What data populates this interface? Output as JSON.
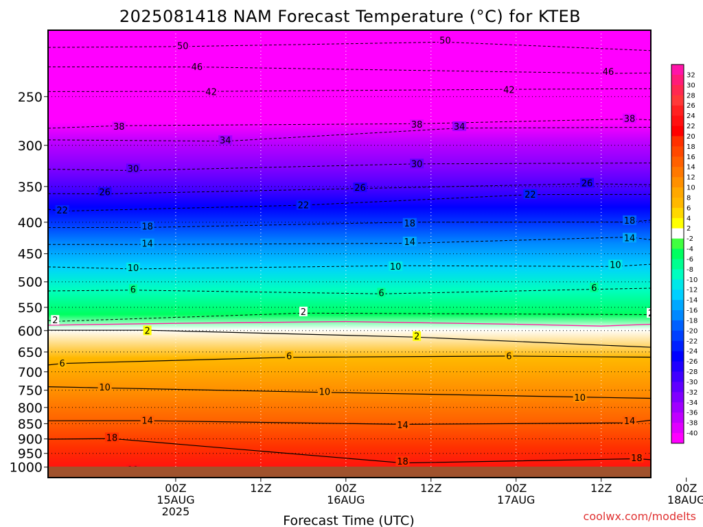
{
  "page": {
    "title": "2025081418 NAM Forecast Temperature (°C) for KTEB",
    "credit": "coolwx.com/modelts"
  },
  "chart_data": {
    "type": "heatmap",
    "title": "2025081418 NAM Forecast Temperature (°C) for KTEB",
    "xlabel": "Forecast Time (UTC)",
    "ylabel": "",
    "y_scale": "log",
    "y_axis": "pressure (hPa), increasing downward",
    "ylim": [
      195,
      1040
    ],
    "yticks": [
      250,
      300,
      350,
      400,
      450,
      500,
      550,
      600,
      650,
      700,
      750,
      800,
      850,
      900,
      950,
      1000
    ],
    "xlim_hours": [
      -12,
      73
    ],
    "xticks": [
      {
        "hour": 6,
        "lines": [
          "00Z",
          "15AUG",
          "2025"
        ]
      },
      {
        "hour": 18,
        "lines": [
          "12Z"
        ]
      },
      {
        "hour": 30,
        "lines": [
          "00Z",
          "16AUG"
        ]
      },
      {
        "hour": 42,
        "lines": [
          "12Z"
        ]
      },
      {
        "hour": 54,
        "lines": [
          "00Z",
          "17AUG"
        ]
      },
      {
        "hour": 66,
        "lines": [
          "12Z"
        ]
      },
      {
        "hour": 78,
        "lines": [
          "00Z",
          "18AUG"
        ]
      }
    ],
    "vertical_gridlines_hours": [
      6,
      18,
      30,
      42,
      54,
      66,
      78
    ],
    "colorbar": {
      "labels": [
        32,
        30,
        28,
        26,
        24,
        22,
        20,
        18,
        16,
        14,
        12,
        10,
        8,
        6,
        4,
        2,
        -2,
        -4,
        -6,
        -8,
        -10,
        -12,
        -14,
        -16,
        -18,
        -20,
        -22,
        -24,
        -26,
        -28,
        -30,
        -32,
        -34,
        -36,
        -38,
        -40
      ],
      "colors": [
        "#ff14a8",
        "#ff1c78",
        "#ff2850",
        "#ff3838",
        "#ff2020",
        "#ff1010",
        "#ff0000",
        "#ff3000",
        "#ff4800",
        "#ff6000",
        "#ff7800",
        "#ff9000",
        "#ffa800",
        "#ffb800",
        "#ffd800",
        "#ffff00",
        "#ffffff",
        "#40ff40",
        "#00ff60",
        "#00ff90",
        "#00ffc0",
        "#00e8e8",
        "#00d0ff",
        "#00a8ff",
        "#0088ff",
        "#0060ff",
        "#0040ff",
        "#0020ff",
        "#0000ff",
        "#2000ff",
        "#4000ff",
        "#6000ff",
        "#8000ff",
        "#a000ff",
        "#c000ff",
        "#e000ff",
        "#ff00ff"
      ]
    },
    "contour_labels": [
      {
        "v": -50,
        "hour": 7,
        "p": 207
      },
      {
        "v": -50,
        "hour": 44,
        "p": 203
      },
      {
        "v": -50,
        "hour": 79,
        "p": 211
      },
      {
        "v": -46,
        "hour": 9,
        "p": 224
      },
      {
        "v": -46,
        "hour": 67,
        "p": 228
      },
      {
        "v": -42,
        "hour": 11,
        "p": 246
      },
      {
        "v": -42,
        "hour": 53,
        "p": 244
      },
      {
        "v": -38,
        "hour": -2,
        "p": 280
      },
      {
        "v": -38,
        "hour": 40,
        "p": 278
      },
      {
        "v": -38,
        "hour": 70,
        "p": 272
      },
      {
        "v": -34,
        "hour": 13,
        "p": 295
      },
      {
        "v": -34,
        "hour": 46,
        "p": 280
      },
      {
        "v": -30,
        "hour": 0,
        "p": 328
      },
      {
        "v": -30,
        "hour": 40,
        "p": 322
      },
      {
        "v": -26,
        "hour": -4,
        "p": 358
      },
      {
        "v": -26,
        "hour": 32,
        "p": 352
      },
      {
        "v": -26,
        "hour": 64,
        "p": 346
      },
      {
        "v": -22,
        "hour": -10,
        "p": 383
      },
      {
        "v": -22,
        "hour": 24,
        "p": 376
      },
      {
        "v": -22,
        "hour": 56,
        "p": 361
      },
      {
        "v": -18,
        "hour": 2,
        "p": 407
      },
      {
        "v": -18,
        "hour": 39,
        "p": 402
      },
      {
        "v": -18,
        "hour": 70,
        "p": 398
      },
      {
        "v": -14,
        "hour": 2,
        "p": 434
      },
      {
        "v": -14,
        "hour": 39,
        "p": 431
      },
      {
        "v": -14,
        "hour": 70,
        "p": 425
      },
      {
        "v": -10,
        "hour": 0,
        "p": 475
      },
      {
        "v": -10,
        "hour": 37,
        "p": 473
      },
      {
        "v": -10,
        "hour": 68,
        "p": 470
      },
      {
        "v": -6,
        "hour": 0,
        "p": 515
      },
      {
        "v": -6,
        "hour": 35,
        "p": 522
      },
      {
        "v": -6,
        "hour": 65,
        "p": 512
      },
      {
        "v": -2,
        "hour": -11,
        "p": 578
      },
      {
        "v": -2,
        "hour": 24,
        "p": 560
      },
      {
        "v": -2,
        "hour": 73,
        "p": 563
      },
      {
        "v": 2,
        "hour": 2,
        "p": 601
      },
      {
        "v": 2,
        "hour": 40,
        "p": 614
      },
      {
        "v": 2,
        "hour": 74,
        "p": 641
      },
      {
        "v": 6,
        "hour": -10,
        "p": 679
      },
      {
        "v": 6,
        "hour": 22,
        "p": 661
      },
      {
        "v": 6,
        "hour": 53,
        "p": 661
      },
      {
        "v": 10,
        "hour": -4,
        "p": 743
      },
      {
        "v": 10,
        "hour": 27,
        "p": 755
      },
      {
        "v": 10,
        "hour": 63,
        "p": 772
      },
      {
        "v": 14,
        "hour": 2,
        "p": 841
      },
      {
        "v": 14,
        "hour": 38,
        "p": 856
      },
      {
        "v": 14,
        "hour": 70,
        "p": 843
      },
      {
        "v": 18,
        "hour": -3,
        "p": 897
      },
      {
        "v": 18,
        "hour": 38,
        "p": 980
      },
      {
        "v": 18,
        "hour": 71,
        "p": 968
      },
      {
        "v": 22,
        "hour": 0,
        "p": 1012
      }
    ]
  }
}
